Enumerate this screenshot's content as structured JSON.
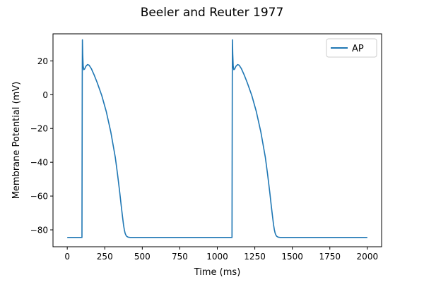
{
  "chart_data": {
    "type": "line",
    "title": "Beeler and Reuter 1977",
    "xlabel": "Time (ms)",
    "ylabel": "Membrane Potential (mV)",
    "xlim": [
      -95,
      2095
    ],
    "ylim": [
      -90,
      36
    ],
    "xticks": [
      0,
      250,
      500,
      750,
      1000,
      1250,
      1500,
      1750,
      2000
    ],
    "xtick_labels": [
      "0",
      "250",
      "500",
      "750",
      "1000",
      "1250",
      "1500",
      "1750",
      "2000"
    ],
    "yticks": [
      -80,
      -60,
      -40,
      -20,
      0,
      20
    ],
    "ytick_labels": [
      "−80",
      "−60",
      "−40",
      "−20",
      "0",
      "20"
    ],
    "grid": false,
    "legend_position": "top-right",
    "series": [
      {
        "name": "AP",
        "color": "#1f77b4",
        "x": [
          0,
          98,
          100,
          101,
          103,
          106,
          110,
          116,
          124,
          135,
          145,
          160,
          180,
          200,
          230,
          260,
          290,
          320,
          335,
          350,
          360,
          368,
          375,
          380,
          385,
          390,
          396,
          403,
          410,
          420,
          440,
          480,
          600,
          800,
          1000,
          1098,
          1100,
          1101,
          1103,
          1106,
          1110,
          1116,
          1124,
          1135,
          1145,
          1160,
          1180,
          1200,
          1230,
          1260,
          1290,
          1320,
          1335,
          1350,
          1360,
          1368,
          1375,
          1380,
          1385,
          1390,
          1396,
          1403,
          1410,
          1420,
          1440,
          1480,
          1600,
          1800,
          2000
        ],
        "y": [
          -84.5,
          -84.5,
          10,
          32.5,
          24,
          17,
          14.8,
          15.2,
          16.8,
          17.8,
          17.5,
          15.5,
          11.5,
          7,
          -0.5,
          -10,
          -22,
          -37,
          -47,
          -58,
          -66,
          -72,
          -77,
          -79.8,
          -81.8,
          -83,
          -83.8,
          -84.2,
          -84.4,
          -84.5,
          -84.5,
          -84.5,
          -84.5,
          -84.5,
          -84.5,
          -84.5,
          10,
          32.5,
          24,
          17,
          14.8,
          15.2,
          16.8,
          17.8,
          17.5,
          15.5,
          11.5,
          7,
          -0.5,
          -10,
          -22,
          -37,
          -47,
          -58,
          -66,
          -72,
          -77,
          -79.8,
          -81.8,
          -83,
          -83.8,
          -84.2,
          -84.4,
          -84.5,
          -84.5,
          -84.5,
          -84.5,
          -84.5,
          -84.5
        ]
      }
    ]
  }
}
